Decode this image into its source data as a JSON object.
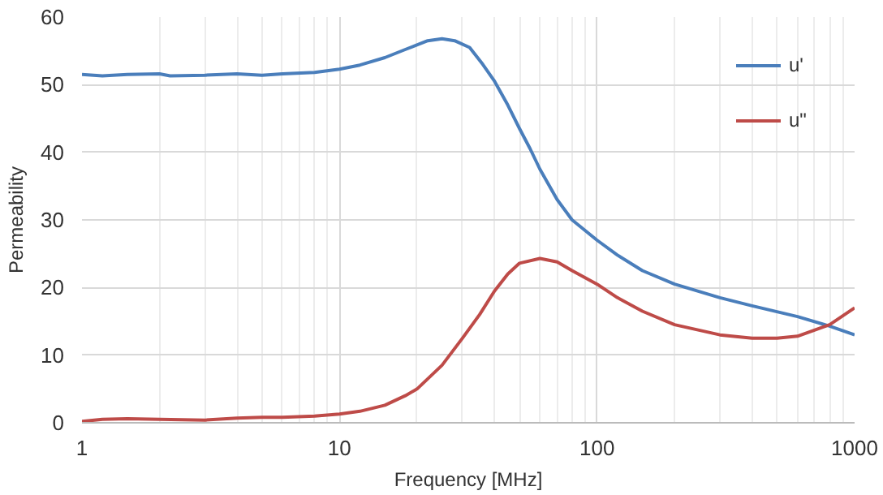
{
  "chart_data": {
    "type": "line",
    "xlabel": "Frequency [MHz]",
    "ylabel": "Permeability",
    "log": "x",
    "xlim": [
      1,
      1000
    ],
    "ylim": [
      0,
      60
    ],
    "xticks": [
      1,
      10,
      100,
      1000
    ],
    "yticks": [
      0,
      10,
      20,
      30,
      40,
      50,
      60
    ],
    "grid": true,
    "legend": "top right",
    "series": [
      {
        "name": "u'",
        "color": "#4a7ebb",
        "x": [
          1,
          1.2,
          1.5,
          2,
          2.2,
          3,
          4,
          5,
          6,
          8,
          10,
          12,
          15,
          18,
          22,
          25,
          28,
          32,
          36,
          40,
          45,
          50,
          55,
          60,
          70,
          80,
          100,
          120,
          150,
          200,
          300,
          400,
          600,
          800,
          1000
        ],
        "values": [
          51.5,
          51.3,
          51.5,
          51.6,
          51.3,
          51.4,
          51.6,
          51.4,
          51.6,
          51.8,
          52.3,
          52.9,
          54,
          55.2,
          56.5,
          56.8,
          56.5,
          55.5,
          53,
          50.5,
          47,
          43.5,
          40.5,
          37.5,
          33,
          30,
          27,
          24.8,
          22.5,
          20.5,
          18.5,
          17.3,
          15.7,
          14.3,
          13
        ]
      },
      {
        "name": "u\"",
        "color": "#be4b48",
        "x": [
          1,
          1.2,
          1.5,
          2,
          3,
          4,
          5,
          6,
          8,
          10,
          12,
          15,
          18,
          20,
          25,
          30,
          35,
          40,
          45,
          50,
          60,
          70,
          80,
          100,
          120,
          150,
          200,
          300,
          400,
          500,
          600,
          800,
          1000
        ],
        "values": [
          0.2,
          0.5,
          0.6,
          0.5,
          0.4,
          0.7,
          0.8,
          0.8,
          1,
          1.3,
          1.7,
          2.6,
          4,
          5,
          8.5,
          12.5,
          16,
          19.5,
          22,
          23.6,
          24.3,
          23.8,
          22.5,
          20.5,
          18.5,
          16.5,
          14.5,
          13,
          12.5,
          12.5,
          12.8,
          14.5,
          17
        ]
      }
    ]
  }
}
